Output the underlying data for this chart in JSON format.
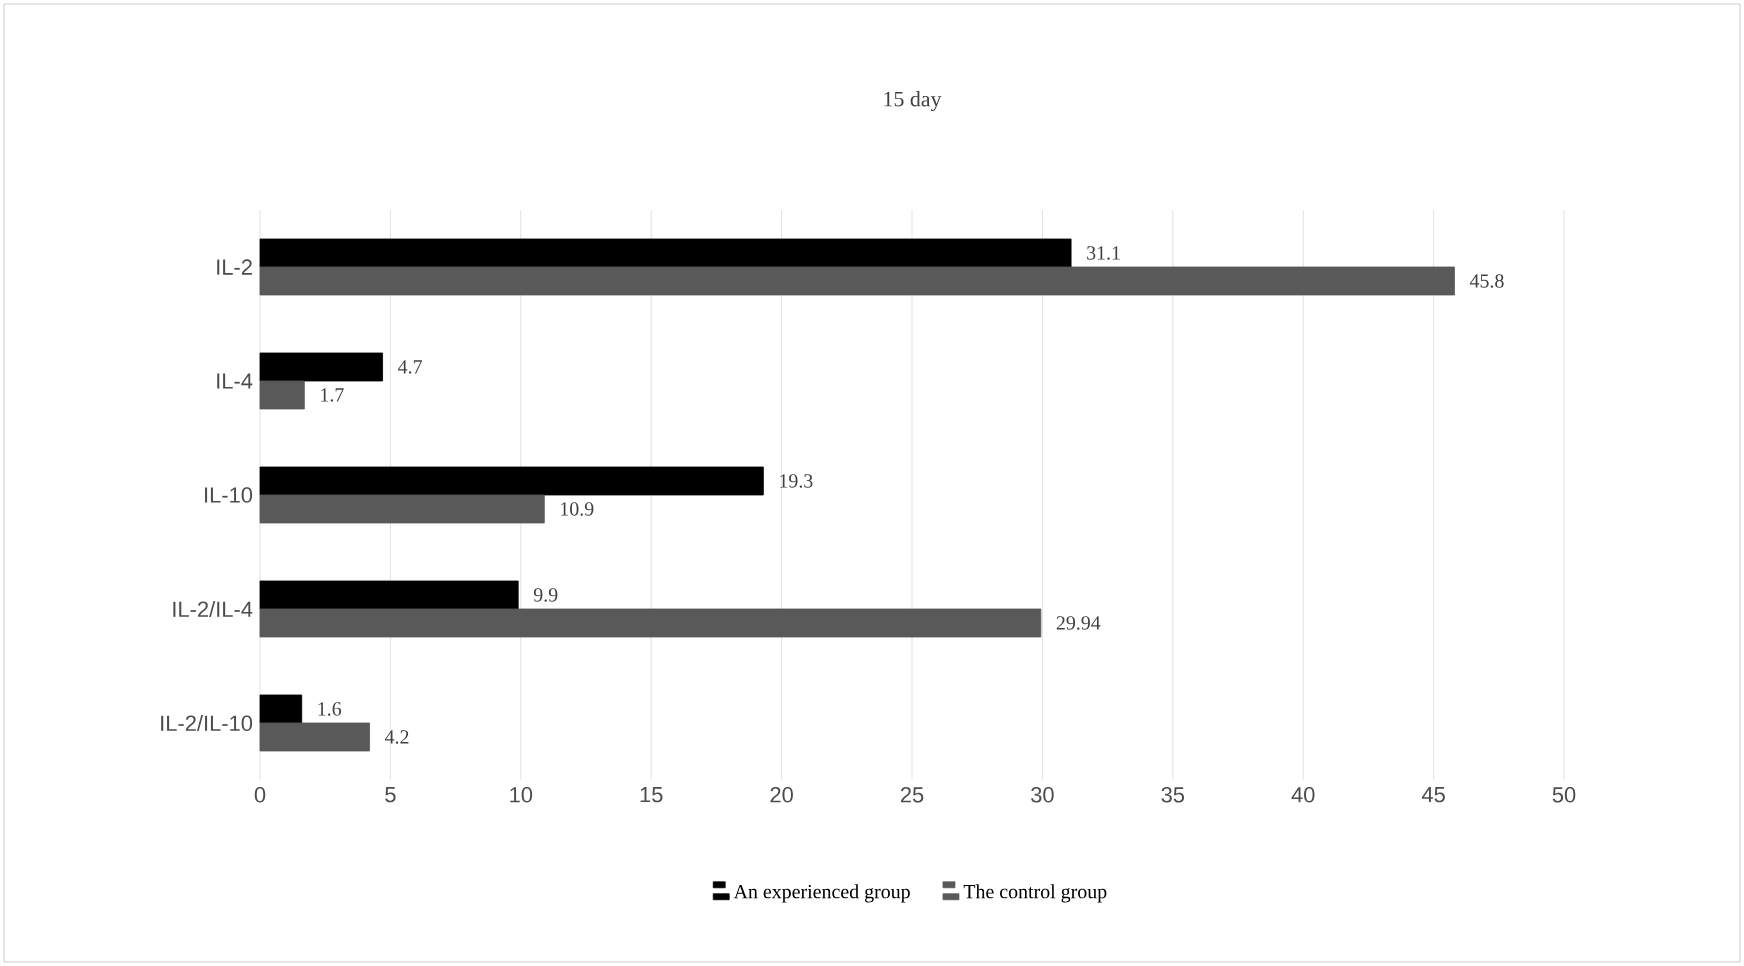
{
  "chart_data": {
    "type": "bar",
    "orientation": "horizontal",
    "title": "15 day",
    "categories": [
      "IL-2",
      "IL-4",
      "IL-10",
      "IL-2/IL-4",
      "IL-2/IL-10"
    ],
    "series": [
      {
        "name": "An experienced group",
        "color": "#000000",
        "values": [
          31.1,
          4.7,
          19.3,
          9.9,
          1.6
        ]
      },
      {
        "name": "The control group",
        "color": "#595959",
        "values": [
          45.8,
          1.7,
          10.9,
          29.94,
          4.2
        ]
      }
    ],
    "xlim": [
      0,
      50
    ],
    "xticks": [
      0,
      5,
      10,
      15,
      20,
      25,
      30,
      35,
      40,
      45,
      50
    ],
    "grid": "x",
    "legend": "bottom",
    "data_labels": true
  }
}
